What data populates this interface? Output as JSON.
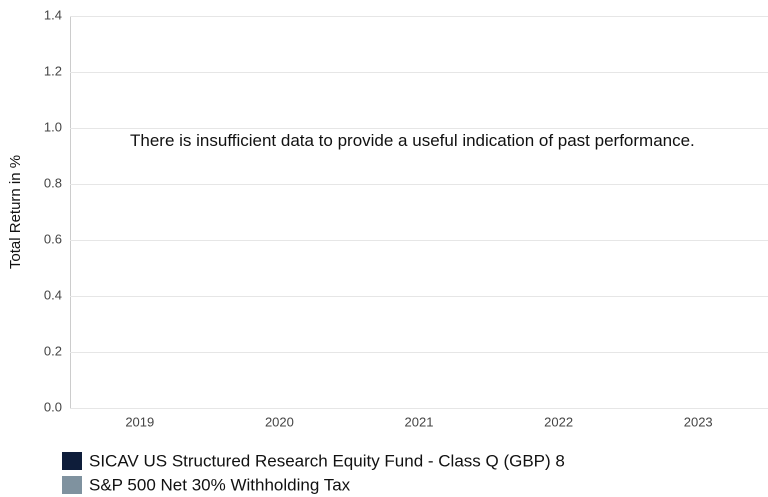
{
  "chart_data": {
    "type": "bar",
    "y_axis_label": "Total Return in %",
    "annotation": "There is insufficient data to provide a useful indication of past performance.",
    "categories": [
      "2019",
      "2020",
      "2021",
      "2022",
      "2023"
    ],
    "series": [
      {
        "name": "SICAV US Structured Research Equity Fund - Class Q (GBP) 8",
        "color": "#0e1d3a",
        "values": [
          null,
          null,
          null,
          null,
          null
        ]
      },
      {
        "name": "S&P 500 Net 30% Withholding Tax",
        "color": "#7f929f",
        "values": [
          null,
          null,
          null,
          null,
          null
        ]
      }
    ],
    "ylim": [
      0,
      1.4
    ],
    "yticks": [
      {
        "value": 0,
        "label": "0.0"
      },
      0.2,
      0.4,
      0.6,
      0.8,
      {
        "value": 1,
        "label": "1.0"
      },
      1.2,
      1.4
    ],
    "grid": true
  }
}
